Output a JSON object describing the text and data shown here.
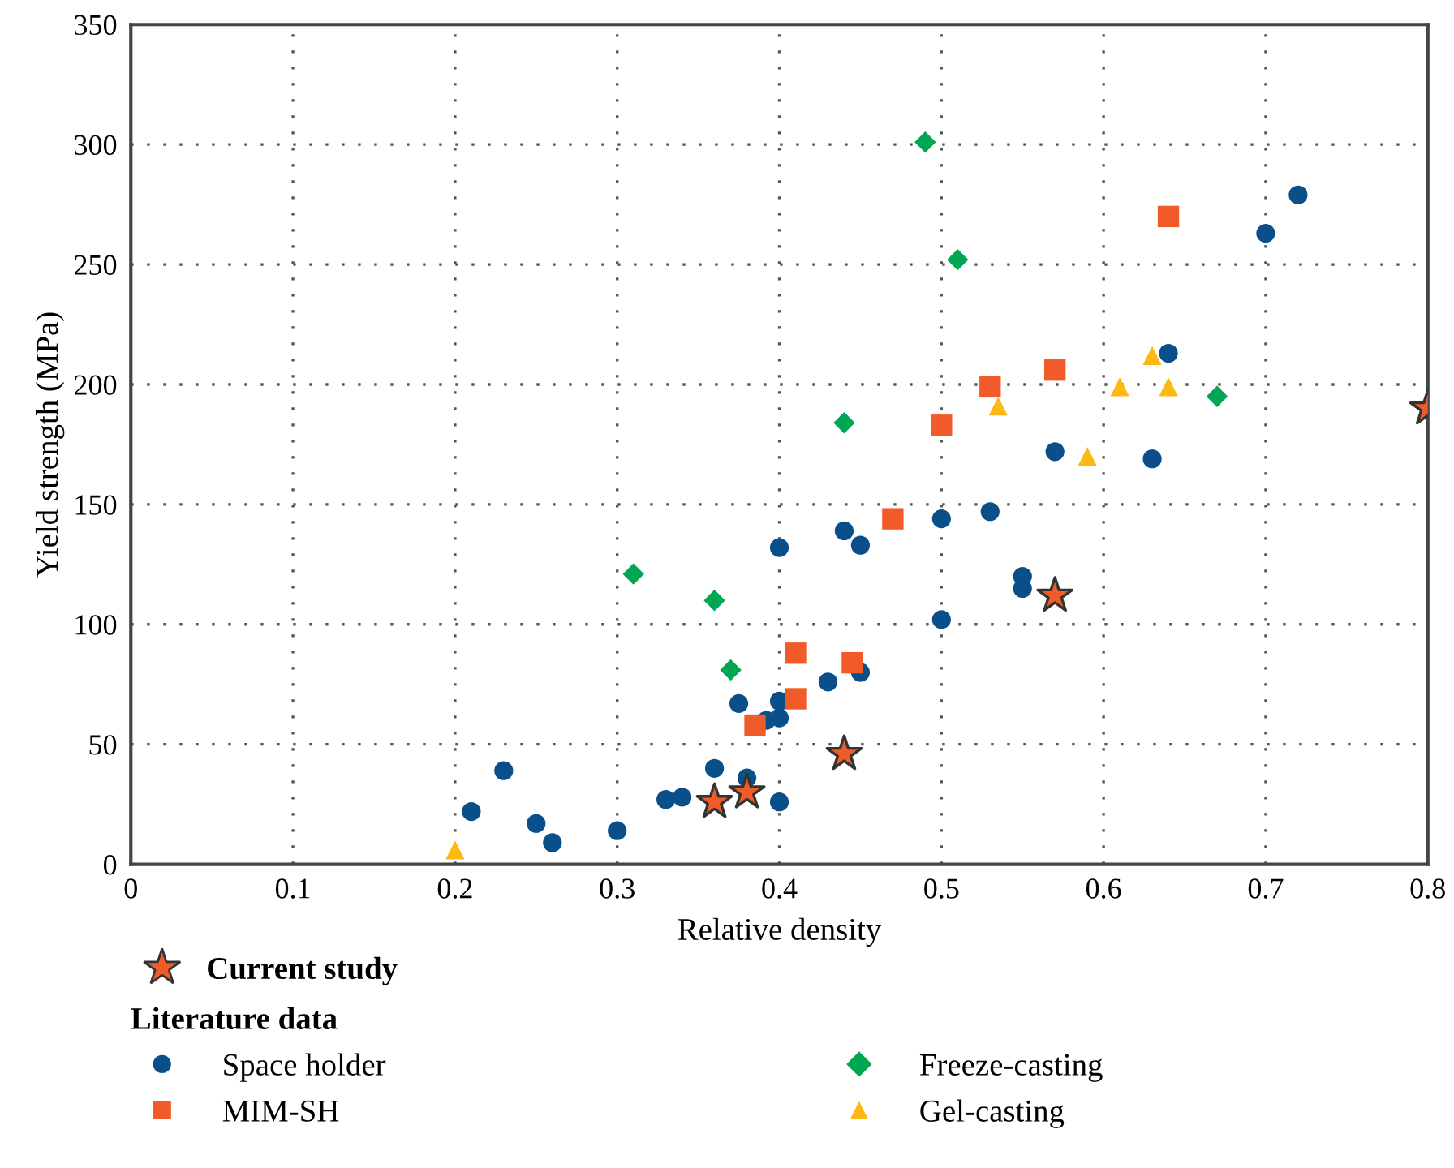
{
  "chart_data": {
    "type": "scatter",
    "xlabel": "Relative density",
    "ylabel": "Yield strength (MPa)",
    "xlim": [
      0,
      0.8
    ],
    "xticks": [
      0,
      0.1,
      0.2,
      0.3,
      0.4,
      0.5,
      0.6,
      0.7,
      0.8
    ],
    "ylim": [
      0,
      350
    ],
    "yticks": [
      0,
      50,
      100,
      150,
      200,
      250,
      300,
      350
    ],
    "grid": true,
    "legend": "bottom",
    "legend_title": "Literature data",
    "series": [
      {
        "name": "Current study",
        "color": "#f15a29",
        "marker": "star",
        "x": [
          0.36,
          0.38,
          0.44,
          0.57,
          0.8
        ],
        "values": [
          26,
          30,
          46,
          112,
          190
        ]
      },
      {
        "name": "Space holder",
        "color": "#0b4f8a",
        "marker": "circle",
        "x": [
          0.21,
          0.23,
          0.25,
          0.26,
          0.3,
          0.33,
          0.34,
          0.36,
          0.38,
          0.4,
          0.375,
          0.392,
          0.4,
          0.4,
          0.43,
          0.45,
          0.4,
          0.44,
          0.45,
          0.5,
          0.53,
          0.55,
          0.55,
          0.5,
          0.57,
          0.72,
          0.7,
          0.64,
          0.63
        ],
        "values": [
          22,
          39,
          17,
          9,
          14,
          27,
          28,
          40,
          36,
          26,
          67,
          60,
          61,
          68,
          76,
          80,
          132,
          139,
          133,
          144,
          147,
          120,
          115,
          102,
          172,
          279,
          263,
          213,
          169
        ]
      },
      {
        "name": "MIM-SH",
        "color": "#f15a29",
        "marker": "square",
        "x": [
          0.41,
          0.41,
          0.385,
          0.445,
          0.47,
          0.5,
          0.53,
          0.57,
          0.64
        ],
        "values": [
          88,
          69,
          58,
          84,
          144,
          183,
          199,
          206,
          270
        ]
      },
      {
        "name": "Freeze-casting",
        "color": "#00a651",
        "marker": "diamond",
        "x": [
          0.31,
          0.36,
          0.37,
          0.44,
          0.49,
          0.51,
          0.67
        ],
        "values": [
          121,
          110,
          81,
          184,
          301,
          252,
          195
        ]
      },
      {
        "name": "Gel-casting",
        "color": "#fdb913",
        "marker": "triangle",
        "x": [
          0.2,
          0.535,
          0.59,
          0.61,
          0.63,
          0.64
        ],
        "values": [
          6,
          191,
          170,
          199,
          212,
          199
        ]
      }
    ]
  }
}
